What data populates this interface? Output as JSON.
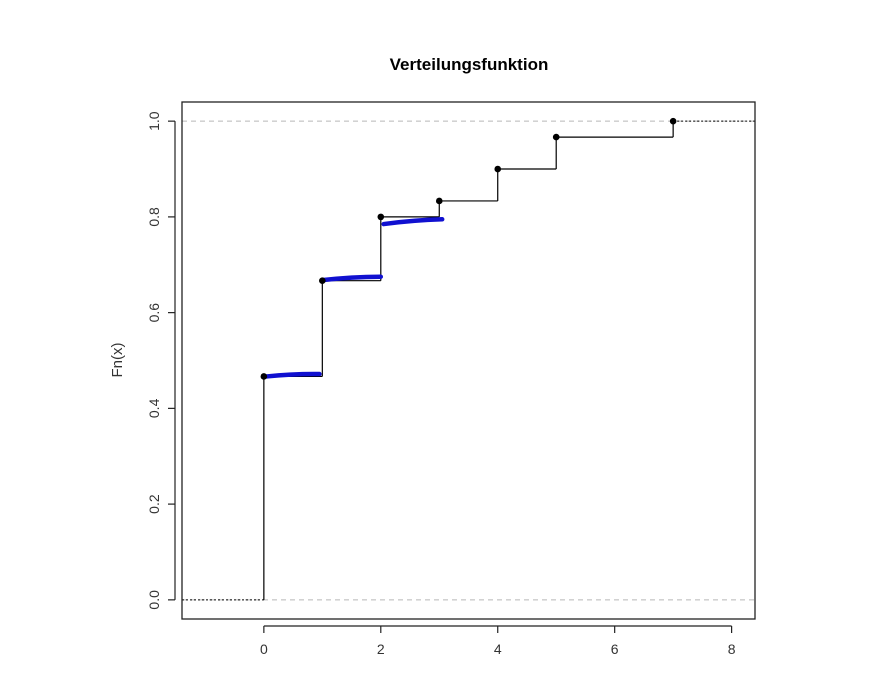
{
  "chart_data": {
    "type": "line",
    "title": "Verteilungsfunktion",
    "xlabel": "",
    "ylabel": "Fn(x)",
    "xlim": [
      -1.4,
      8.4
    ],
    "ylim": [
      -0.04,
      1.04
    ],
    "x_ticks": [
      0,
      2,
      4,
      6,
      8
    ],
    "y_ticks": [
      0.0,
      0.2,
      0.4,
      0.6,
      0.8,
      1.0
    ],
    "y_tick_labels": [
      "0.0",
      "0.2",
      "0.4",
      "0.6",
      "0.8",
      "1.0"
    ],
    "x_tick_labels": [
      "0",
      "2",
      "4",
      "6",
      "8"
    ],
    "reference_lines_y": [
      0,
      1
    ],
    "series": [
      {
        "step_x": [
          0,
          1,
          2,
          3,
          4,
          5,
          7
        ],
        "step_y": [
          0.4667,
          0.6667,
          0.8,
          0.8333,
          0.9,
          0.9667,
          1.0
        ]
      }
    ],
    "annotations": [
      {
        "color": "#1010d0",
        "x": [
          0.05,
          0.95
        ],
        "y": [
          0.4667,
          0.4717
        ]
      },
      {
        "color": "#1010d0",
        "x": [
          1.0,
          2.0
        ],
        "y": [
          0.668,
          0.675
        ]
      },
      {
        "color": "#1010d0",
        "x": [
          2.05,
          3.05
        ],
        "y": [
          0.785,
          0.795
        ]
      }
    ],
    "colors": {
      "step": "#000000",
      "reference": "#b8b8b8",
      "marker": "#000000",
      "annotation": "#1010d0"
    }
  }
}
